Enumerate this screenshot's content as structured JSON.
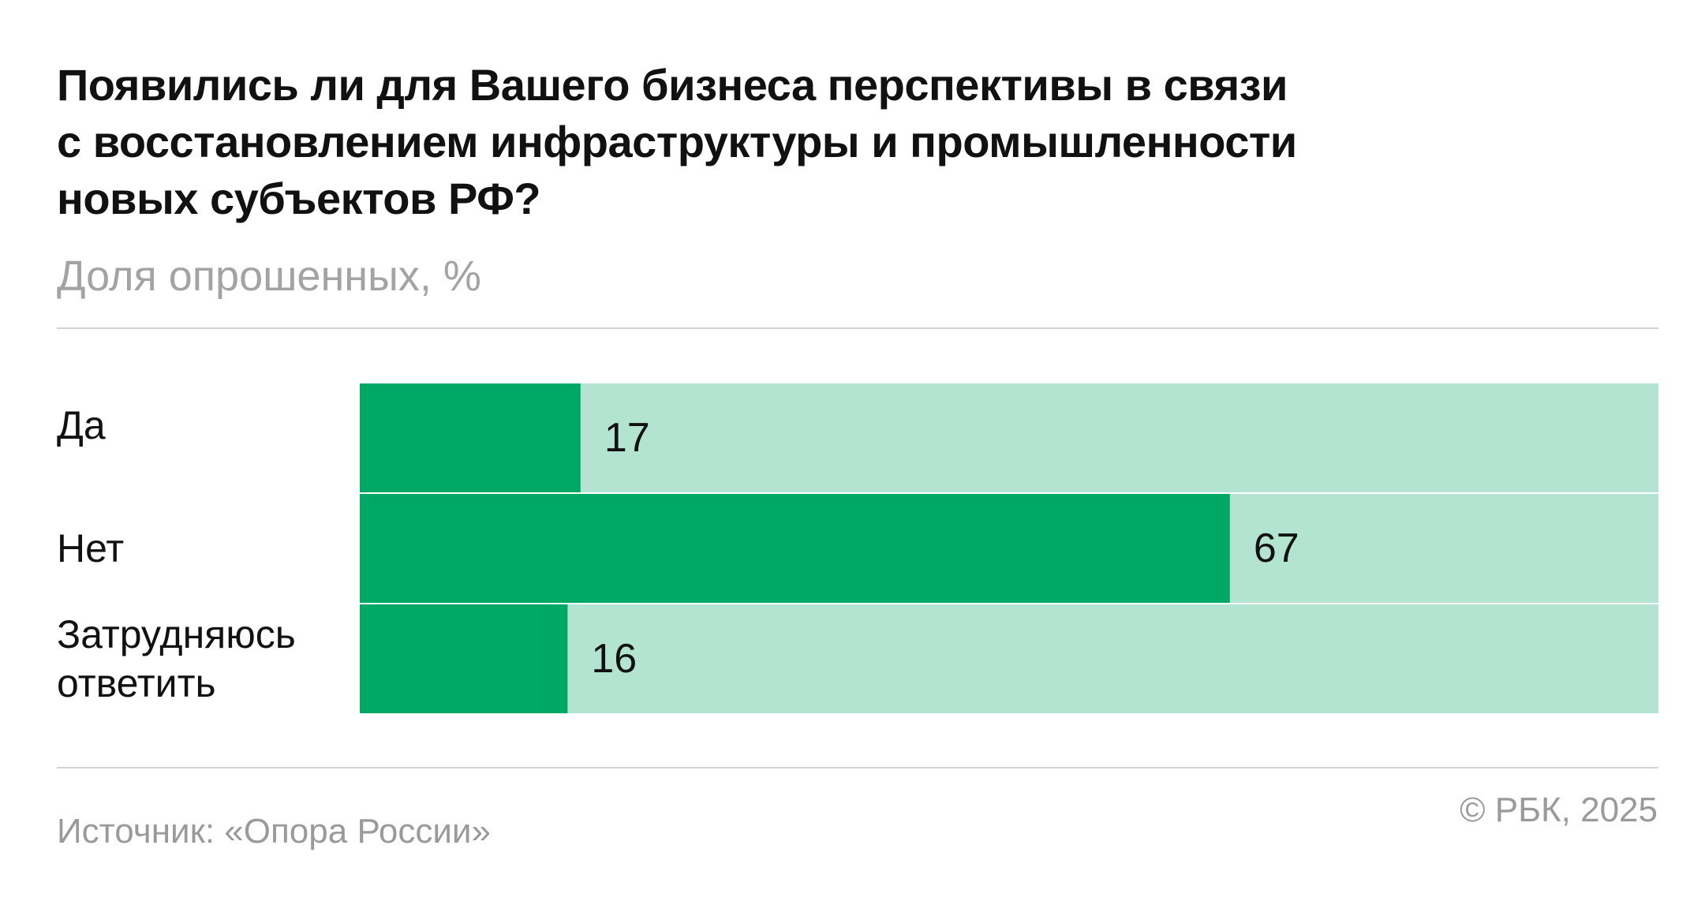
{
  "header": {
    "title_lines": [
      "Появились ли для Вашего бизнеса перспективы в связи",
      "с восстановлением инфраструктуры и промышленности",
      "новых субъектов РФ?"
    ],
    "subtitle": "Доля опрошенных, %"
  },
  "footer": {
    "source": "Источник: «Опора России»",
    "copyright": "© РБК, 2025"
  },
  "colors": {
    "bar_fill": "#00a866",
    "bar_track": "#b3e4d2",
    "text": "#111111",
    "muted_text": "#a3a3a3"
  },
  "chart_data": {
    "type": "bar",
    "orientation": "horizontal",
    "title": "Появились ли для Вашего бизнеса перспективы в связи с восстановлением инфраструктуры и промышленности новых субъектов РФ?",
    "subtitle": "Доля опрошенных, %",
    "categories": [
      "Да",
      "Нет",
      "Затрудняюсь ответить"
    ],
    "category_lines": [
      [
        "Да"
      ],
      [
        "Нет"
      ],
      [
        "Затрудняюсь",
        "ответить"
      ]
    ],
    "values": [
      17,
      67,
      16
    ],
    "xlim": [
      0,
      100
    ],
    "data_labels": [
      "17",
      "67",
      "16"
    ],
    "grid": false,
    "legend": "none"
  }
}
